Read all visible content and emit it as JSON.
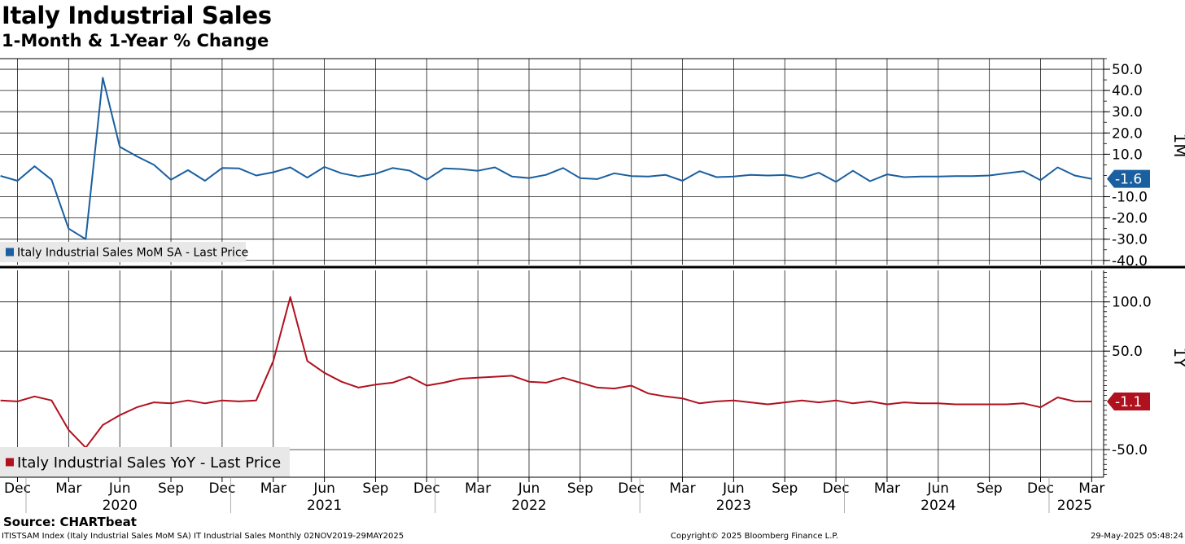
{
  "title": "Italy Industrial Sales",
  "subtitle": "1-Month & 1-Year % Change",
  "footer": {
    "source": "Source: CHARTbeat",
    "description": "ITISTSAM Index (Italy Industrial Sales MoM SA) IT Industrial Sales  Monthly 02NOV2019-29MAY2025",
    "copyright": "Copyright© 2025 Bloomberg Finance L.P.",
    "timestamp": "29-May-2025 05:48:24"
  },
  "chart_data": [
    {
      "type": "line",
      "panel_label": "1M",
      "legend": "Italy Industrial Sales MoM SA - Last Price",
      "legend_position": "bottom-left",
      "color": "#1a5fa0",
      "last_value_label": "-1.6",
      "ylim": [
        -42,
        55
      ],
      "yticks": [
        50,
        40,
        30,
        20,
        10,
        -10,
        -20,
        -30,
        -40
      ],
      "ytick_labels": [
        "50.0",
        "40.0",
        "30.0",
        "20.0",
        "10.0",
        "-10.0",
        "-20.0",
        "-30.0",
        "-40.0"
      ],
      "grid": true,
      "x": [
        "2019-11",
        "2019-12",
        "2020-01",
        "2020-02",
        "2020-03",
        "2020-04",
        "2020-05",
        "2020-06",
        "2020-07",
        "2020-08",
        "2020-09",
        "2020-10",
        "2020-11",
        "2020-12",
        "2021-01",
        "2021-02",
        "2021-03",
        "2021-04",
        "2021-05",
        "2021-06",
        "2021-07",
        "2021-08",
        "2021-09",
        "2021-10",
        "2021-11",
        "2021-12",
        "2022-01",
        "2022-02",
        "2022-03",
        "2022-04",
        "2022-05",
        "2022-06",
        "2022-07",
        "2022-08",
        "2022-09",
        "2022-10",
        "2022-11",
        "2022-12",
        "2023-01",
        "2023-02",
        "2023-03",
        "2023-04",
        "2023-05",
        "2023-06",
        "2023-07",
        "2023-08",
        "2023-09",
        "2023-10",
        "2023-11",
        "2023-12",
        "2024-01",
        "2024-02",
        "2024-03",
        "2024-04",
        "2024-05",
        "2024-06",
        "2024-07",
        "2024-08",
        "2024-09",
        "2024-10",
        "2024-11",
        "2024-12",
        "2025-01",
        "2025-02",
        "2025-03"
      ],
      "values": [
        -0.2,
        -2.5,
        4.3,
        -2.0,
        -25.0,
        -30.0,
        46.0,
        13.5,
        9.0,
        5.0,
        -2.0,
        2.5,
        -2.5,
        3.5,
        3.3,
        0.0,
        1.5,
        3.8,
        -1.0,
        4.0,
        1.0,
        -0.5,
        0.8,
        3.5,
        2.3,
        -2.0,
        3.3,
        3.0,
        2.2,
        3.8,
        -0.5,
        -1.2,
        0.3,
        3.5,
        -1.3,
        -1.7,
        1.0,
        -0.3,
        -0.5,
        0.3,
        -2.5,
        2.0,
        -0.8,
        -0.5,
        0.3,
        0.0,
        0.2,
        -1.2,
        1.3,
        -3.0,
        2.2,
        -2.7,
        0.5,
        -0.8,
        -0.5,
        -0.5,
        -0.3,
        -0.3,
        0.0,
        1.0,
        2.0,
        -2.2,
        3.8,
        0.0,
        -1.6
      ]
    },
    {
      "type": "line",
      "panel_label": "1Y",
      "legend": "Italy Industrial Sales YoY - Last Price",
      "legend_position": "bottom-left",
      "color": "#b0111e",
      "last_value_label": "-1.1",
      "ylim": [
        -78,
        132
      ],
      "yticks": [
        100,
        50,
        -50
      ],
      "ytick_labels": [
        "100.0",
        "50.0",
        "-50.0"
      ],
      "grid": true,
      "x": [
        "2019-11",
        "2019-12",
        "2020-01",
        "2020-02",
        "2020-03",
        "2020-04",
        "2020-05",
        "2020-06",
        "2020-07",
        "2020-08",
        "2020-09",
        "2020-10",
        "2020-11",
        "2020-12",
        "2021-01",
        "2021-02",
        "2021-03",
        "2021-04",
        "2021-05",
        "2021-06",
        "2021-07",
        "2021-08",
        "2021-09",
        "2021-10",
        "2021-11",
        "2021-12",
        "2022-01",
        "2022-02",
        "2022-03",
        "2022-04",
        "2022-05",
        "2022-06",
        "2022-07",
        "2022-08",
        "2022-09",
        "2022-10",
        "2022-11",
        "2022-12",
        "2023-01",
        "2023-02",
        "2023-03",
        "2023-04",
        "2023-05",
        "2023-06",
        "2023-07",
        "2023-08",
        "2023-09",
        "2023-10",
        "2023-11",
        "2023-12",
        "2024-01",
        "2024-02",
        "2024-03",
        "2024-04",
        "2024-05",
        "2024-06",
        "2024-07",
        "2024-08",
        "2024-09",
        "2024-10",
        "2024-11",
        "2024-12",
        "2025-01",
        "2025-02",
        "2025-03"
      ],
      "values": [
        0,
        -1,
        4,
        0,
        -30,
        -48,
        -25,
        -15,
        -7,
        -2,
        -3,
        0,
        -3,
        0,
        -1,
        0,
        40,
        105,
        40,
        28,
        19,
        13,
        16,
        18,
        24,
        15,
        18,
        22,
        23,
        24,
        25,
        19,
        18,
        23,
        18,
        13,
        12,
        15,
        7,
        4,
        2,
        -3,
        -1,
        0,
        -2,
        -4,
        -2,
        0,
        -2,
        0,
        -3,
        -1,
        -4,
        -2,
        -3,
        -3,
        -4,
        -4,
        -4,
        -4,
        -3,
        -7,
        3,
        -1,
        -1.1
      ]
    }
  ],
  "x_axis": {
    "month_labels": [
      "Dec",
      "Mar",
      "Jun",
      "Sep",
      "Dec",
      "Mar",
      "Jun",
      "Sep",
      "Dec",
      "Mar",
      "Jun",
      "Sep",
      "Dec",
      "Mar",
      "Jun",
      "Sep",
      "Dec",
      "Mar",
      "Jun",
      "Sep",
      "Dec",
      "Mar"
    ],
    "month_dates": [
      "2019-12",
      "2020-03",
      "2020-06",
      "2020-09",
      "2020-12",
      "2021-03",
      "2021-06",
      "2021-09",
      "2021-12",
      "2022-03",
      "2022-06",
      "2022-09",
      "2022-12",
      "2023-03",
      "2023-06",
      "2023-09",
      "2023-12",
      "2024-03",
      "2024-06",
      "2024-09",
      "2024-12",
      "2025-03"
    ],
    "year_labels": [
      "2020",
      "2021",
      "2022",
      "2023",
      "2024",
      "2025"
    ],
    "year_dates": [
      "2020-01",
      "2021-01",
      "2022-01",
      "2023-01",
      "2024-01",
      "2025-01"
    ]
  }
}
